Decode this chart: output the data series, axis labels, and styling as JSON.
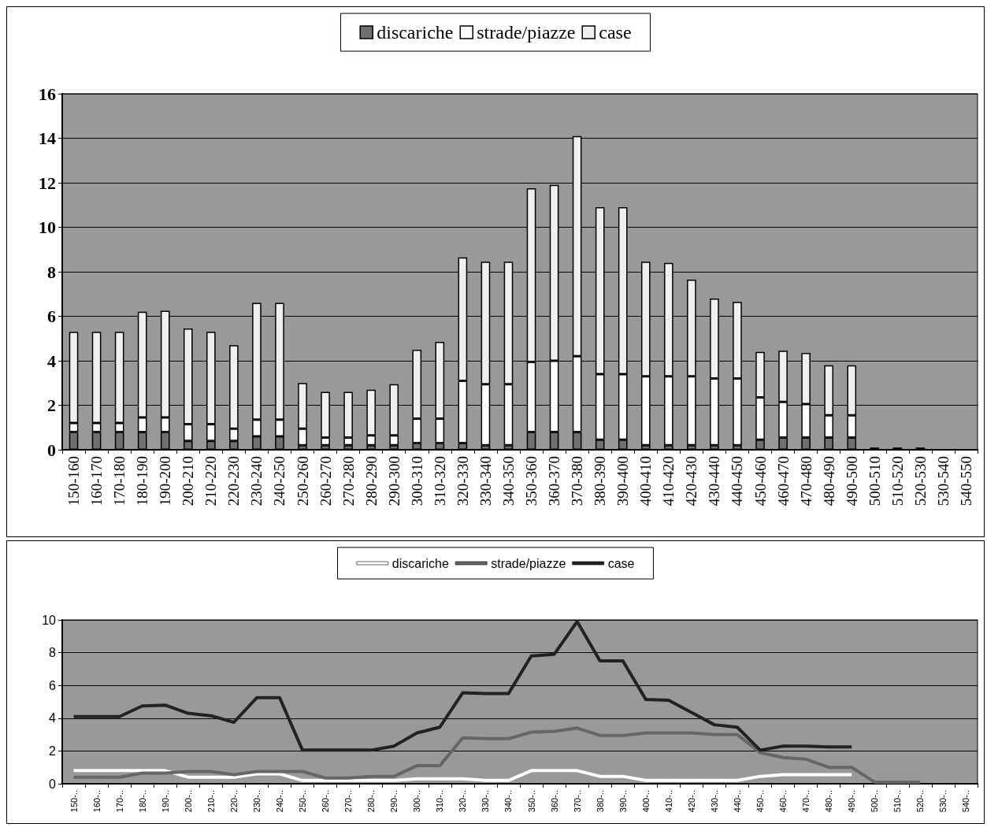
{
  "chart_data": [
    {
      "type": "bar",
      "stacked": true,
      "categories": [
        "150-160",
        "160-170",
        "170-180",
        "180-190",
        "190-200",
        "200-210",
        "210-220",
        "220-230",
        "230-240",
        "240-250",
        "250-260",
        "260-270",
        "270-280",
        "280-290",
        "290-300",
        "300-310",
        "310-320",
        "320-330",
        "330-340",
        "340-350",
        "350-360",
        "360-370",
        "370-380",
        "380-390",
        "390-400",
        "400-410",
        "410-420",
        "420-430",
        "430-440",
        "440-450",
        "450-460",
        "460-470",
        "470-480",
        "480-490",
        "490-500",
        "500-510",
        "510-520",
        "520-530",
        "530-540",
        "540-550"
      ],
      "series": [
        {
          "name": "discariche",
          "color": "#707070",
          "values": [
            0.8,
            0.8,
            0.8,
            0.8,
            0.8,
            0.4,
            0.4,
            0.4,
            0.6,
            0.6,
            0.2,
            0.2,
            0.2,
            0.2,
            0.2,
            0.3,
            0.3,
            0.3,
            0.2,
            0.2,
            0.8,
            0.8,
            0.8,
            0.45,
            0.45,
            0.2,
            0.2,
            0.2,
            0.2,
            0.2,
            0.45,
            0.55,
            0.55,
            0.55,
            0.55,
            null,
            null,
            null,
            null,
            null
          ]
        },
        {
          "name": "strade/piazze",
          "color": "#ffffff",
          "values": [
            0.4,
            0.4,
            0.4,
            0.65,
            0.65,
            0.75,
            0.75,
            0.55,
            0.75,
            0.75,
            0.75,
            0.35,
            0.35,
            0.45,
            0.45,
            1.1,
            1.1,
            2.8,
            2.75,
            2.75,
            3.15,
            3.2,
            3.4,
            2.95,
            2.95,
            3.1,
            3.1,
            3.1,
            3.0,
            3.0,
            1.9,
            1.6,
            1.5,
            1.0,
            1.0,
            0.1,
            0.1,
            0.1,
            null,
            null
          ]
        },
        {
          "name": "case",
          "color": "#efefef",
          "values": [
            4.1,
            4.1,
            4.1,
            4.75,
            4.8,
            4.3,
            4.15,
            3.75,
            5.25,
            5.25,
            2.05,
            2.05,
            2.05,
            2.05,
            2.3,
            3.1,
            3.45,
            5.55,
            5.5,
            5.5,
            7.8,
            7.9,
            9.9,
            7.5,
            7.5,
            5.15,
            5.1,
            4.35,
            3.6,
            3.45,
            2.05,
            2.3,
            2.3,
            2.25,
            2.25,
            null,
            null,
            null,
            null,
            null
          ]
        }
      ],
      "ylim": [
        0,
        16
      ],
      "yticks": [
        0,
        2,
        4,
        6,
        8,
        10,
        12,
        14,
        16
      ],
      "grid": "y",
      "legend": "top"
    },
    {
      "type": "line",
      "categories": [
        "150-..",
        "160-..",
        "170-..",
        "180-..",
        "190-..",
        "200-..",
        "210-..",
        "220-..",
        "230-..",
        "240-..",
        "250-..",
        "260-..",
        "270-..",
        "280-..",
        "290-..",
        "300-..",
        "310-..",
        "320-..",
        "330-..",
        "340-..",
        "350-..",
        "360-..",
        "370-..",
        "380-..",
        "390-..",
        "400-..",
        "410-..",
        "420-..",
        "430-..",
        "440-..",
        "450-..",
        "460-..",
        "470-..",
        "480-..",
        "490-..",
        "500-..",
        "510-..",
        "520-..",
        "530-..",
        "540-.."
      ],
      "series": [
        {
          "name": "discariche",
          "color": "#ffffff",
          "values": [
            0.8,
            0.8,
            0.8,
            0.8,
            0.8,
            0.4,
            0.4,
            0.4,
            0.6,
            0.6,
            0.2,
            0.2,
            0.2,
            0.2,
            0.2,
            0.3,
            0.3,
            0.3,
            0.2,
            0.2,
            0.8,
            0.8,
            0.8,
            0.45,
            0.45,
            0.2,
            0.2,
            0.2,
            0.2,
            0.2,
            0.45,
            0.55,
            0.55,
            0.55,
            0.55,
            null,
            null,
            null,
            null,
            null
          ]
        },
        {
          "name": "strade/piazze",
          "color": "#666666",
          "values": [
            0.4,
            0.4,
            0.4,
            0.65,
            0.65,
            0.75,
            0.75,
            0.55,
            0.75,
            0.75,
            0.75,
            0.35,
            0.35,
            0.45,
            0.45,
            1.1,
            1.1,
            2.8,
            2.75,
            2.75,
            3.15,
            3.2,
            3.4,
            2.95,
            2.95,
            3.1,
            3.1,
            3.1,
            3.0,
            3.0,
            1.9,
            1.6,
            1.5,
            1.0,
            1.0,
            0.1,
            0.1,
            0.1,
            null,
            null
          ]
        },
        {
          "name": "case",
          "color": "#222222",
          "values": [
            4.1,
            4.1,
            4.1,
            4.75,
            4.8,
            4.3,
            4.15,
            3.75,
            5.25,
            5.25,
            2.05,
            2.05,
            2.05,
            2.05,
            2.3,
            3.1,
            3.45,
            5.55,
            5.5,
            5.5,
            7.8,
            7.9,
            9.9,
            7.5,
            7.5,
            5.15,
            5.1,
            4.35,
            3.6,
            3.45,
            2.05,
            2.3,
            2.3,
            2.25,
            2.25,
            null,
            null,
            null,
            null,
            null
          ]
        }
      ],
      "ylim": [
        0,
        10
      ],
      "yticks": [
        0,
        2,
        4,
        6,
        8,
        10
      ],
      "grid": "y",
      "legend": "top",
      "marker": "none",
      "line_style": "solid"
    }
  ]
}
